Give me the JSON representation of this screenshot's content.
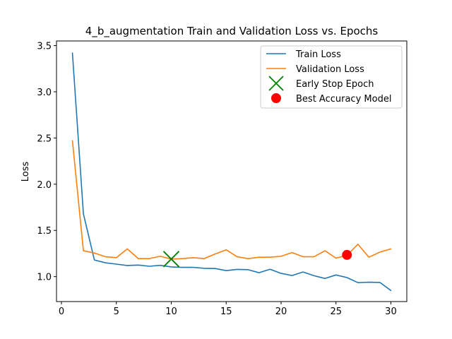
{
  "chart_data": {
    "type": "line",
    "title": "4_b_augmentation Train and Validation Loss vs. Epochs",
    "xlabel": "",
    "ylabel": "Loss",
    "xlim": [
      -0.45,
      31.45
    ],
    "ylim": [
      0.73,
      3.55
    ],
    "xticks": [
      0,
      5,
      10,
      15,
      20,
      25,
      30
    ],
    "yticks": [
      1.0,
      1.5,
      2.0,
      2.5,
      3.0,
      3.5
    ],
    "xtick_labels": [
      "0",
      "5",
      "10",
      "15",
      "20",
      "25",
      "30"
    ],
    "ytick_labels": [
      "1.0",
      "1.5",
      "2.0",
      "2.5",
      "3.0",
      "3.5"
    ],
    "grid": false,
    "legend_position": "top-right",
    "x": [
      1,
      2,
      3,
      4,
      5,
      6,
      7,
      8,
      9,
      10,
      11,
      12,
      13,
      14,
      15,
      16,
      17,
      18,
      19,
      20,
      21,
      22,
      23,
      24,
      25,
      26,
      27,
      28,
      29,
      30
    ],
    "series": [
      {
        "name": "Train Loss",
        "color": "#1f77b4",
        "values": [
          3.42,
          1.68,
          1.18,
          1.15,
          1.135,
          1.12,
          1.125,
          1.112,
          1.122,
          1.105,
          1.1,
          1.1,
          1.09,
          1.088,
          1.065,
          1.078,
          1.075,
          1.042,
          1.08,
          1.035,
          1.012,
          1.05,
          1.01,
          0.98,
          1.018,
          0.99,
          0.935,
          0.94,
          0.937,
          0.85
        ]
      },
      {
        "name": "Validation Loss",
        "color": "#ff7f0e",
        "values": [
          2.47,
          1.28,
          1.255,
          1.215,
          1.205,
          1.3,
          1.195,
          1.195,
          1.22,
          1.19,
          1.195,
          1.205,
          1.195,
          1.245,
          1.29,
          1.215,
          1.195,
          1.21,
          1.21,
          1.22,
          1.26,
          1.215,
          1.215,
          1.28,
          1.2,
          1.23,
          1.35,
          1.21,
          1.265,
          1.3
        ]
      }
    ],
    "markers": [
      {
        "name": "Early Stop Epoch",
        "shape": "x",
        "color": "#008000",
        "x": 10,
        "y": 1.19
      },
      {
        "name": "Best Accuracy Model",
        "shape": "circle",
        "color": "#ff0000",
        "x": 26,
        "y": 1.235
      }
    ]
  }
}
